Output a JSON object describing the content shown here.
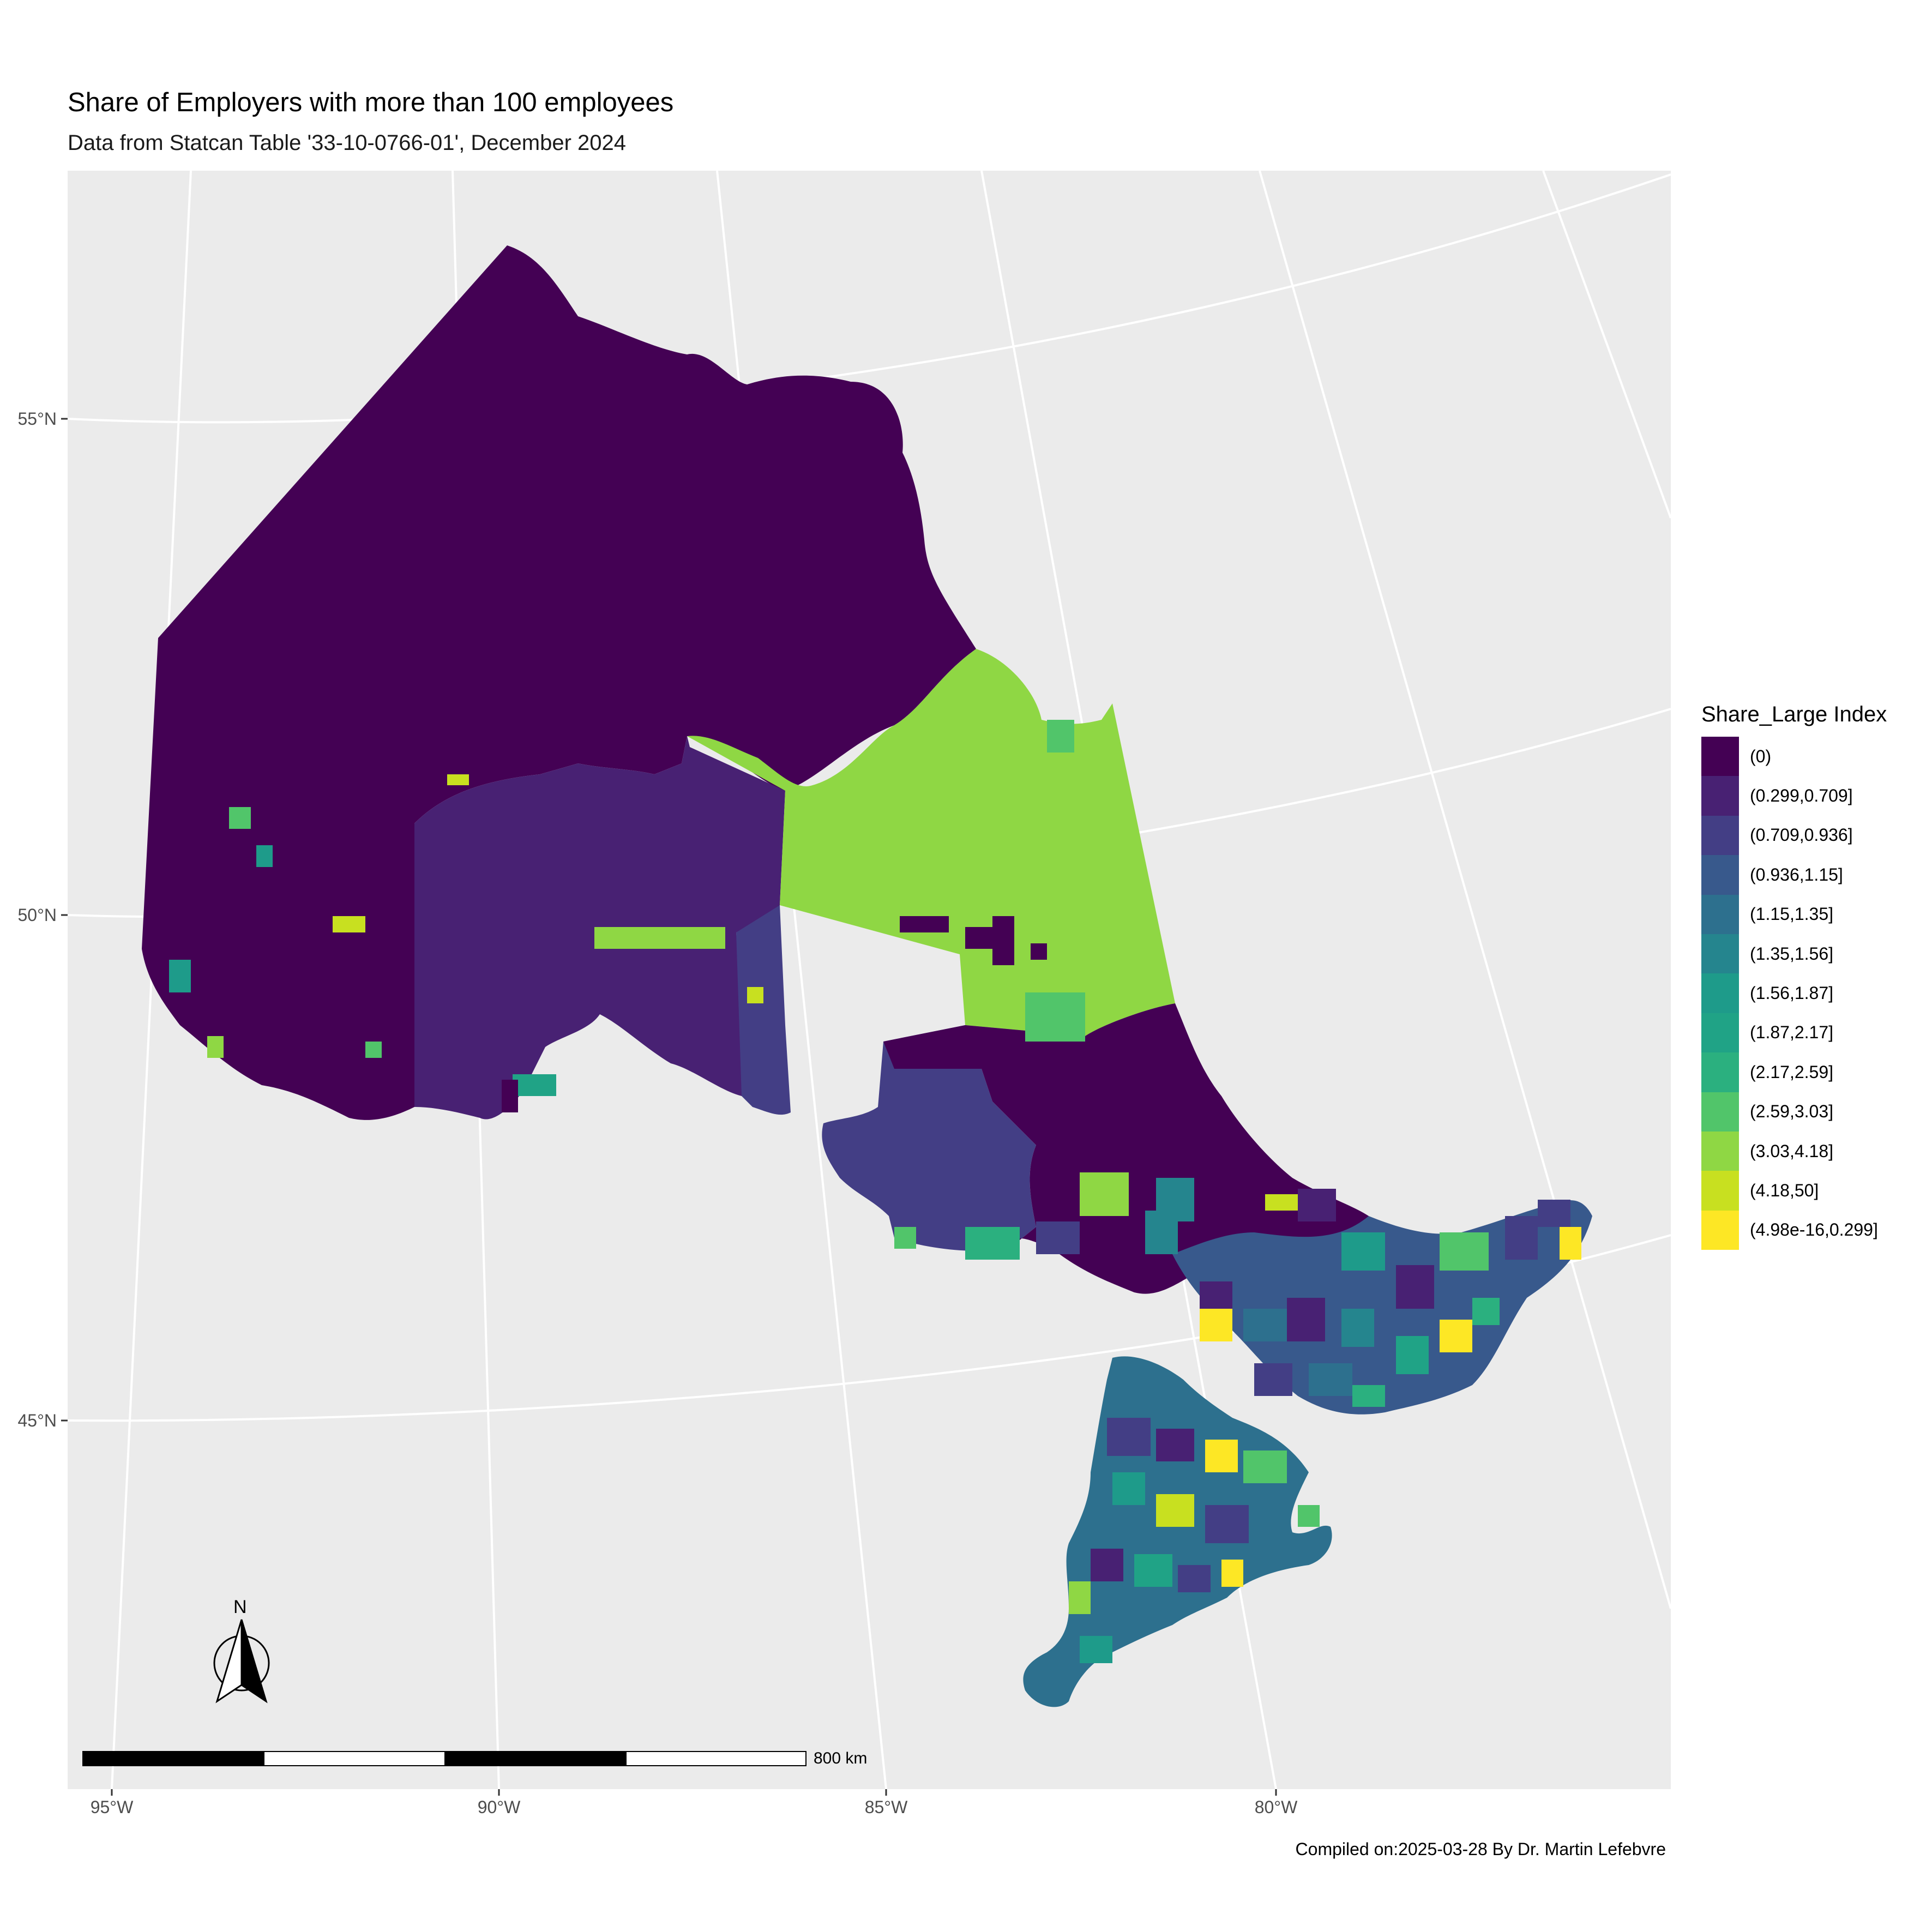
{
  "title": "Share of Employers with more than 100 employees",
  "subtitle": "Data from Statcan Table '33-10-0766-01', December 2024",
  "caption": "Compiled on:2025-03-28 By Dr. Martin Lefebvre",
  "axes": {
    "latitude_labels": [
      "55°N",
      "50°N",
      "45°N"
    ],
    "longitude_labels": [
      "95°W",
      "90°W",
      "85°W",
      "80°W"
    ]
  },
  "legend": {
    "title": "Share_Large Index",
    "items": [
      {
        "label": "(0)",
        "color": "#440154"
      },
      {
        "label": "(0.299,0.709]",
        "color": "#482173"
      },
      {
        "label": "(0.709,0.936]",
        "color": "#433E85"
      },
      {
        "label": "(0.936,1.15]",
        "color": "#38598C"
      },
      {
        "label": "(1.15,1.35]",
        "color": "#2D708E"
      },
      {
        "label": "(1.35,1.56]",
        "color": "#25858E"
      },
      {
        "label": "(1.56,1.87]",
        "color": "#1E9B8A"
      },
      {
        "label": "(1.87,2.17]",
        "color": "#20A386"
      },
      {
        "label": "(2.17,2.59]",
        "color": "#2BB07F"
      },
      {
        "label": "(2.59,3.03]",
        "color": "#51C56A"
      },
      {
        "label": "(3.03,4.18]",
        "color": "#8FD744"
      },
      {
        "label": "(4.18,50]",
        "color": "#C8E020"
      },
      {
        "label": "(4.98e-16,0.299]",
        "color": "#FDE725"
      }
    ]
  },
  "scale_bar": {
    "label": "800 km"
  },
  "north_arrow": {
    "label": "N"
  },
  "colors": {
    "panel_background": "#EBEBEB",
    "graticule": "#FFFFFF"
  }
}
